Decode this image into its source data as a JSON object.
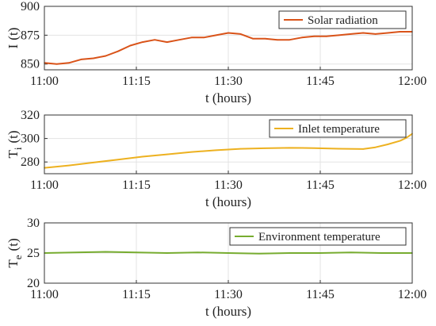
{
  "chart_data": [
    {
      "type": "line",
      "xlabel": "t (hours)",
      "ylabel": "I (t)",
      "ylabel_main": "I",
      "ylabel_sub": "",
      "ylabel_tail": "(t)",
      "ylim": [
        845,
        900
      ],
      "yticks": [
        "850",
        "875",
        "900"
      ],
      "ytick_values": [
        850,
        875,
        900
      ],
      "xlim": [
        "11:00",
        "12:00"
      ],
      "xticks": [
        "11:00",
        "11:15",
        "11:30",
        "11:45",
        "12:00"
      ],
      "grid": true,
      "legend_position": "top-right",
      "series": [
        {
          "name": "Solar radiation",
          "color": "#D95319",
          "x": [
            "11:00",
            "11:02",
            "11:04",
            "11:06",
            "11:08",
            "11:10",
            "11:12",
            "11:14",
            "11:16",
            "11:18",
            "11:20",
            "11:22",
            "11:24",
            "11:26",
            "11:28",
            "11:30",
            "11:32",
            "11:34",
            "11:36",
            "11:38",
            "11:40",
            "11:42",
            "11:44",
            "11:46",
            "11:48",
            "11:50",
            "11:52",
            "11:54",
            "11:56",
            "11:58",
            "12:00"
          ],
          "y": [
            851,
            850,
            851,
            854,
            855,
            857,
            861,
            866,
            869,
            871,
            869,
            871,
            873,
            873,
            875,
            877,
            876,
            872,
            872,
            871,
            871,
            873,
            874,
            874,
            875,
            876,
            877,
            876,
            877,
            878,
            878
          ]
        }
      ]
    },
    {
      "type": "line",
      "xlabel": "t (hours)",
      "ylabel": "T i (t)",
      "ylabel_main": "T",
      "ylabel_sub": "i",
      "ylabel_tail": "(t)",
      "ylim": [
        270,
        320
      ],
      "yticks": [
        "280",
        "300",
        "320"
      ],
      "ytick_values": [
        280,
        300,
        320
      ],
      "xlim": [
        "11:00",
        "12:00"
      ],
      "xticks": [
        "11:00",
        "11:15",
        "11:30",
        "11:45",
        "12:00"
      ],
      "grid": true,
      "legend_position": "top-right",
      "series": [
        {
          "name": "Inlet temperature",
          "color": "#EDB120",
          "x": [
            "11:00",
            "11:04",
            "11:08",
            "11:12",
            "11:16",
            "11:20",
            "11:24",
            "11:28",
            "11:32",
            "11:36",
            "11:40",
            "11:44",
            "11:48",
            "11:52",
            "11:54",
            "11:56",
            "11:58",
            "11:59",
            "12:00"
          ],
          "y": [
            275,
            277,
            279.5,
            282,
            284.5,
            286.5,
            288.5,
            290,
            291.2,
            291.7,
            292,
            291.8,
            291.3,
            291,
            292.5,
            295,
            298,
            300.5,
            304
          ]
        }
      ]
    },
    {
      "type": "line",
      "xlabel": "t (hours)",
      "ylabel": "T e (t)",
      "ylabel_main": "T",
      "ylabel_sub": "e",
      "ylabel_tail": "(t)",
      "ylim": [
        20,
        30
      ],
      "yticks": [
        "20",
        "25",
        "30"
      ],
      "ytick_values": [
        20,
        25,
        30
      ],
      "xlim": [
        "11:00",
        "12:00"
      ],
      "xticks": [
        "11:00",
        "11:15",
        "11:30",
        "11:45",
        "12:00"
      ],
      "grid": true,
      "legend_position": "top-right",
      "series": [
        {
          "name": "Environment temperature",
          "color": "#77AC30",
          "x": [
            "11:00",
            "11:05",
            "11:10",
            "11:15",
            "11:20",
            "11:25",
            "11:30",
            "11:35",
            "11:40",
            "11:45",
            "11:50",
            "11:55",
            "12:00"
          ],
          "y": [
            25.0,
            25.1,
            25.2,
            25.1,
            25.0,
            25.1,
            25.0,
            24.9,
            25.0,
            25.0,
            25.1,
            25.0,
            25.0
          ]
        }
      ]
    }
  ]
}
